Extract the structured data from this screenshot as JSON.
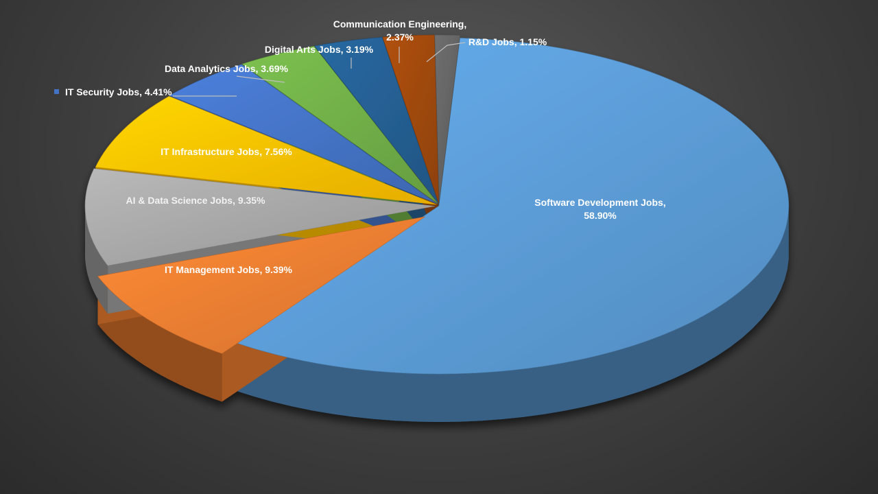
{
  "chart_data": {
    "type": "pie",
    "title": "",
    "legend": "none",
    "slices": [
      {
        "name": "Software Development Jobs",
        "value": 58.9,
        "label": "58.90%",
        "color": "#5b9bd5"
      },
      {
        "name": "IT Management Jobs",
        "value": 9.39,
        "label": "9.39%",
        "color": "#ed7d31"
      },
      {
        "name": "AI & Data Science Jobs",
        "value": 9.35,
        "label": "9.35%",
        "color": "#a5a5a5"
      },
      {
        "name": "IT Infrastructure Jobs",
        "value": 7.56,
        "label": "7.56%",
        "color": "#ffc000"
      },
      {
        "name": "IT Security Jobs",
        "value": 4.41,
        "label": "4.41%",
        "color": "#4472c4"
      },
      {
        "name": "Data Analytics Jobs",
        "value": 3.69,
        "label": "3.69%",
        "color": "#70ad47"
      },
      {
        "name": "Digital Arts Jobs",
        "value": 3.19,
        "label": "3.19%",
        "color": "#255e91"
      },
      {
        "name": "Communication Engineering",
        "value": 2.37,
        "label": "2.37%",
        "color": "#9e480e"
      },
      {
        "name": "R&D Jobs",
        "value": 1.15,
        "label": "1.15%",
        "color": "#636363"
      }
    ]
  }
}
